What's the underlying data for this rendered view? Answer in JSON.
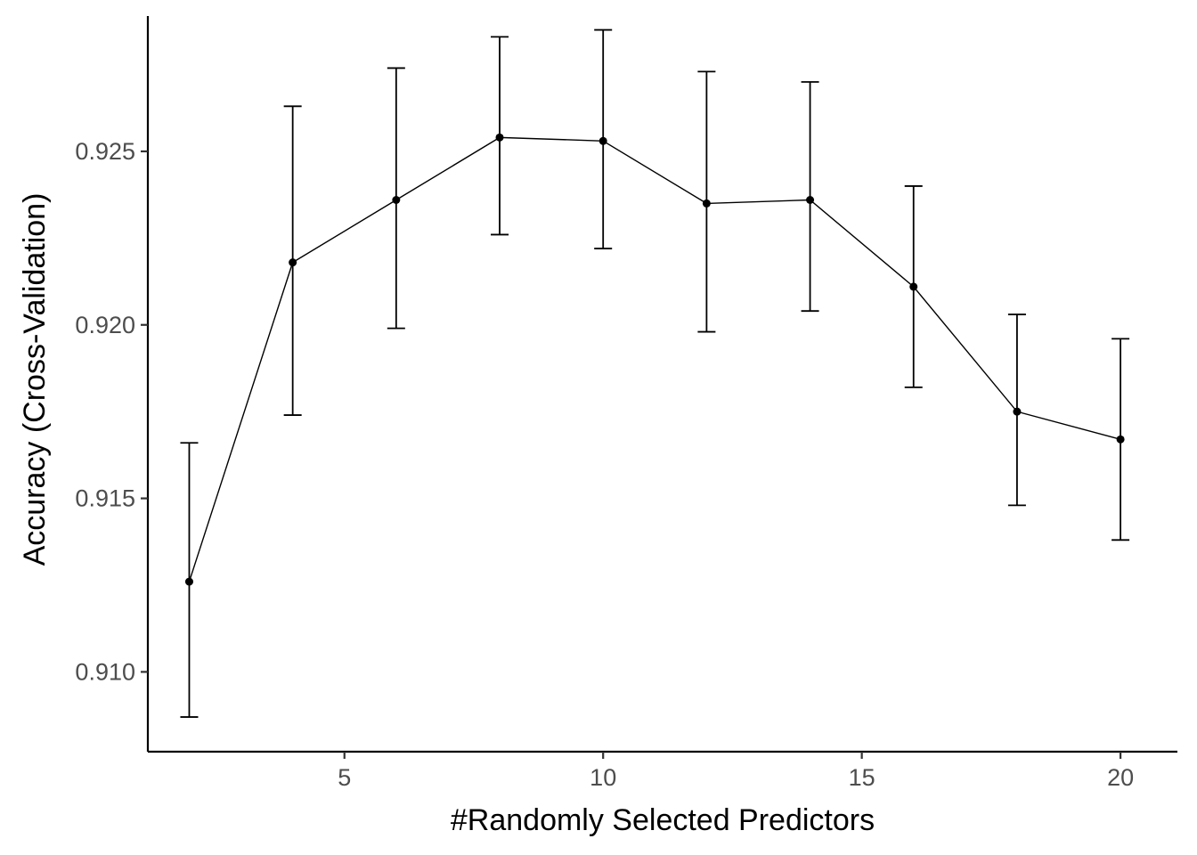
{
  "chart_data": {
    "type": "line",
    "xlabel": "#Randomly Selected Predictors",
    "ylabel": "Accuracy (Cross-Validation)",
    "xlim": [
      1.2,
      21.1
    ],
    "ylim": [
      0.9077,
      0.9289
    ],
    "x_ticks": [
      5,
      10,
      15,
      20
    ],
    "y_ticks": [
      0.91,
      0.915,
      0.92,
      0.925
    ],
    "x_tick_labels": [
      "5",
      "10",
      "15",
      "20"
    ],
    "y_tick_labels": [
      "0.910",
      "0.915",
      "0.920",
      "0.925"
    ],
    "grid": false,
    "series": [
      {
        "x": [
          2,
          4,
          6,
          8,
          10,
          12,
          14,
          16,
          18,
          20
        ],
        "y": [
          0.9126,
          0.9218,
          0.9236,
          0.9254,
          0.9253,
          0.9235,
          0.9236,
          0.9211,
          0.9175,
          0.9167
        ],
        "lower": [
          0.9087,
          0.9174,
          0.9199,
          0.9226,
          0.9222,
          0.9198,
          0.9204,
          0.9182,
          0.9148,
          0.9138
        ],
        "upper": [
          0.9166,
          0.9263,
          0.9274,
          0.9283,
          0.9285,
          0.9273,
          0.927,
          0.924,
          0.9203,
          0.9196
        ]
      }
    ]
  }
}
